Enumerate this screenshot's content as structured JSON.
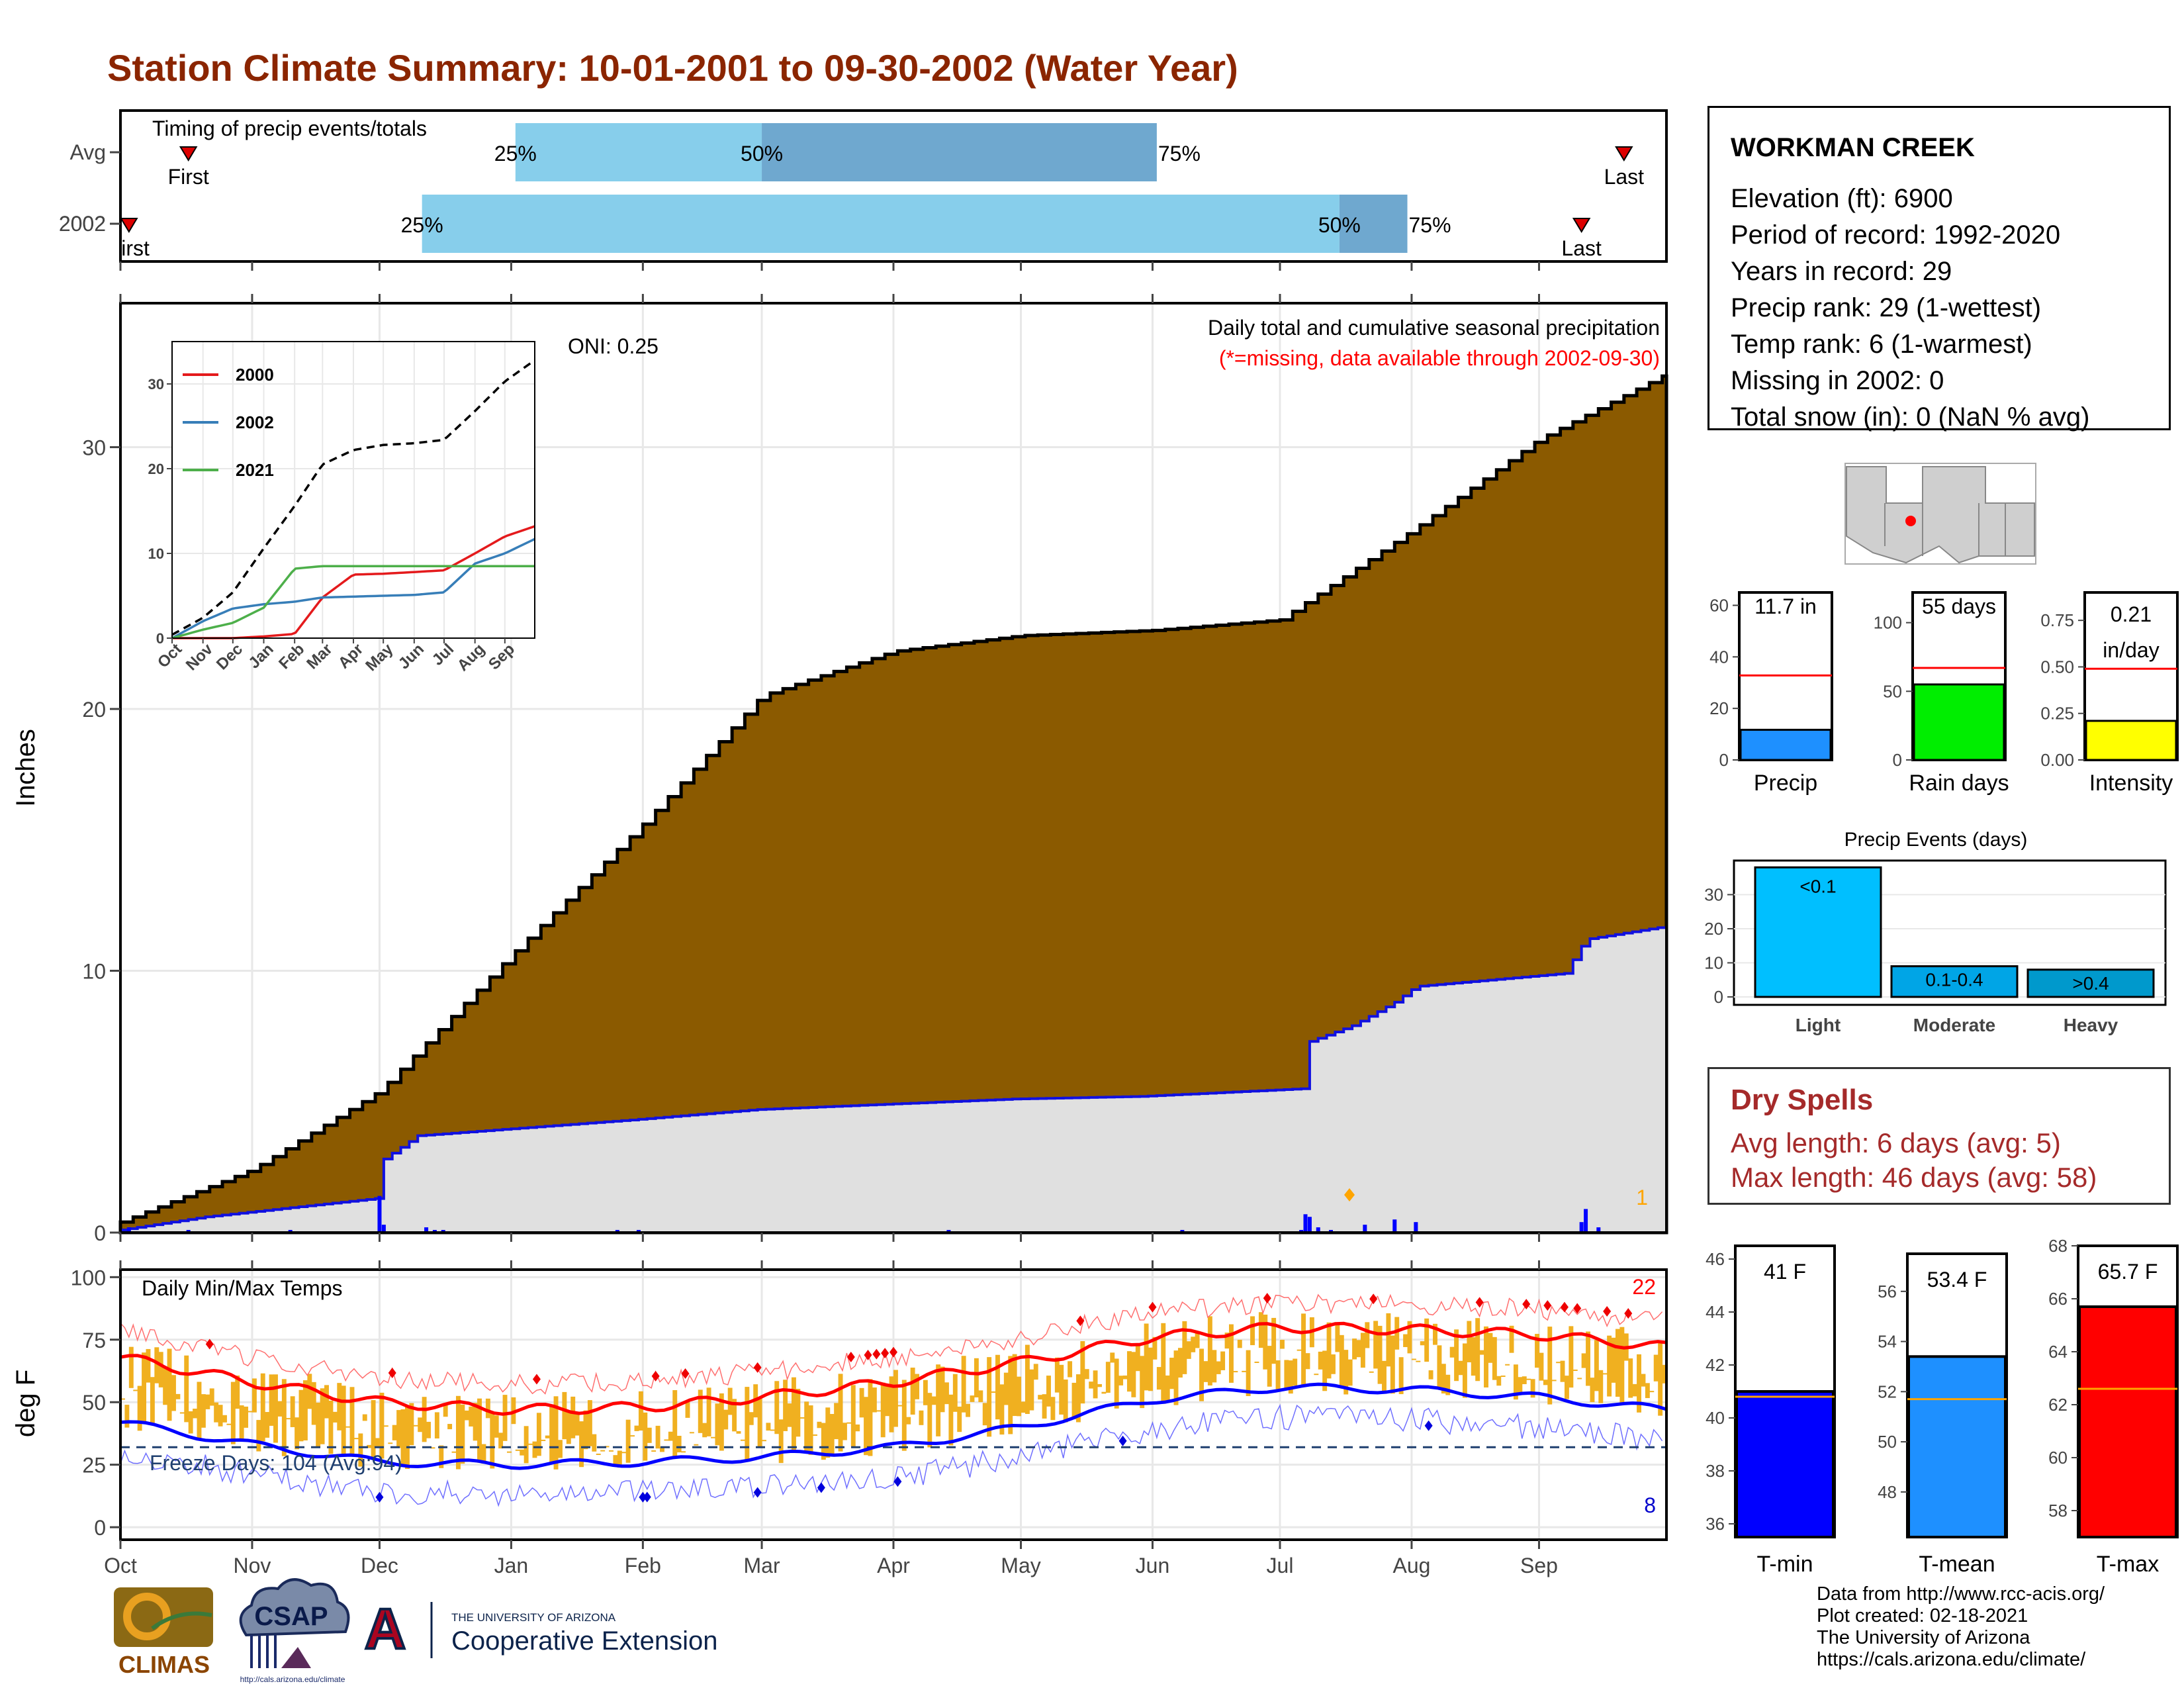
{
  "title": "Station Climate Summary: 10-01-2001 to 09-30-2002 (Water Year)",
  "timing": {
    "panel_label": "Timing of precip events/totals",
    "rows": [
      {
        "label": "Avg",
        "first": "First",
        "last": "Last",
        "p25": "25%",
        "p50": "50%",
        "p75": "75%"
      },
      {
        "label": "2002",
        "first": "First",
        "last": "Last",
        "p25": "25%",
        "p50": "50%",
        "p75": "75%"
      }
    ]
  },
  "precip": {
    "ylabel": "Inches",
    "title_line1": "Daily total and cumulative seasonal precipitation",
    "title_line2": "(*=missing, data available through 2002-09-30)",
    "oni": "ONI: 0.25",
    "count_label": "1",
    "months": [
      "Oct",
      "Nov",
      "Dec",
      "Jan",
      "Feb",
      "Mar",
      "Apr",
      "May",
      "Jun",
      "Jul",
      "Aug",
      "Sep"
    ]
  },
  "inset": {
    "legend": [
      "2000",
      "2002",
      "2021"
    ],
    "colors": [
      "#e41a1c",
      "#377eb8",
      "#4daf4a"
    ],
    "months": [
      "Oct",
      "Nov",
      "Dec",
      "Jan",
      "Feb",
      "Mar",
      "Apr",
      "May",
      "Jun",
      "Jul",
      "Aug",
      "Sep"
    ]
  },
  "temps": {
    "panel_label": "Daily Min/Max Temps",
    "ylabel": "deg F",
    "freeze": "Freeze Days: 104 (Avg:94)",
    "hot_count": "22",
    "cold_count": "8",
    "months": [
      "Oct",
      "Nov",
      "Dec",
      "Jan",
      "Feb",
      "Mar",
      "Apr",
      "May",
      "Jun",
      "Jul",
      "Aug",
      "Sep"
    ]
  },
  "station": {
    "name": "WORKMAN CREEK",
    "lines": [
      "Elevation (ft): 6900",
      "Period of record: 1992-2020",
      "Years in record: 29",
      "Precip rank: 29 (1-wettest)",
      "Temp rank: 6 (1-warmest)",
      "Missing in 2002: 0",
      "Total snow (in): 0 (NaN % avg)"
    ]
  },
  "summary_bars": [
    {
      "label": "Precip",
      "value_text": "11.7 in",
      "value": 11.7,
      "avg": 32.8,
      "ylim": [
        0,
        65
      ],
      "ticks": [
        "0",
        "20",
        "40",
        "60"
      ],
      "color": "#1e90ff"
    },
    {
      "label": "Rain days",
      "value_text": "55 days",
      "value": 55,
      "avg": 67,
      "ylim": [
        0,
        122
      ],
      "ticks": [
        "0",
        "50",
        "100"
      ],
      "color": "#00ee00"
    },
    {
      "label": "Intensity",
      "value_text": "0.21 in/day",
      "value_line1": "0.21",
      "value_line2": "in/day",
      "value": 0.21,
      "avg": 0.49,
      "ylim": [
        0,
        0.9
      ],
      "ticks": [
        "0.00",
        "0.25",
        "0.50",
        "0.75"
      ],
      "color": "#ffff00"
    }
  ],
  "events": {
    "title": "Precip Events (days)",
    "categories": [
      "Light",
      "Moderate",
      "Heavy"
    ],
    "values": [
      38,
      9,
      8
    ],
    "value_labels": [
      "<0.1",
      "0.1-0.4",
      ">0.4"
    ],
    "colors": [
      "#00bfff",
      "#00a5e6",
      "#0099cc"
    ],
    "ticks": [
      "0",
      "10",
      "20",
      "30"
    ]
  },
  "dry_spells": {
    "title": "Dry Spells",
    "avg_line": "Avg length: 6 days (avg: 5)",
    "max_line": "Max length: 46 days (avg: 58)"
  },
  "temp_bars": [
    {
      "label": "T-min",
      "value_text": "41 F",
      "value": 41,
      "avg": 40.8,
      "ylim": [
        35.5,
        46.5
      ],
      "ticks": [
        "36",
        "38",
        "40",
        "42",
        "44",
        "46"
      ],
      "color": "#0000ff"
    },
    {
      "label": "T-mean",
      "value_text": "53.4 F",
      "value": 53.4,
      "avg": 51.7,
      "ylim": [
        46.2,
        57.5
      ],
      "ticks": [
        "48",
        "50",
        "52",
        "54",
        "56"
      ],
      "color": "#1e90ff"
    },
    {
      "label": "T-max",
      "value_text": "65.7 F",
      "value": 65.7,
      "avg": 62.6,
      "ylim": [
        57,
        68
      ],
      "ticks": [
        "58",
        "60",
        "62",
        "64",
        "66",
        "68"
      ],
      "color": "#ff0000"
    }
  ],
  "logos": {
    "climas": "CLIMAS",
    "csap": "CSAP",
    "csap_url": "http://cals.arizona.edu/climate",
    "ua_line1": "THE UNIVERSITY OF ARIZONA",
    "ua_line2": "Cooperative Extension",
    "ua_letter": "A"
  },
  "footer": [
    "Data from http://www.rcc-acis.org/",
    "Plot created: 02-18-2021",
    "The University of Arizona",
    "https://cals.arizona.edu/climate/"
  ],
  "chart_data": [
    {
      "type": "bar",
      "title": "Timing of precip events/totals",
      "series": [
        {
          "name": "Avg",
          "p25_date": "2002-01-02",
          "p50_date": "2002-03-01",
          "p75_date": "2002-06-02",
          "first_date": "2001-10-17",
          "last_date": "2002-09-20"
        },
        {
          "name": "2002",
          "p25_date": "2001-12-11",
          "p50_date": "2002-07-15",
          "p75_date": "2002-07-31",
          "first_date": "2001-10-03",
          "last_date": "2002-09-10"
        }
      ]
    },
    {
      "type": "area",
      "title": "Daily total and cumulative seasonal precipitation",
      "ylabel": "Inches",
      "ylim": [
        0,
        35.5
      ],
      "x_unit": "day of water year",
      "avg_cumulative": {
        "x": [
          0,
          31,
          61,
          92,
          123,
          151,
          182,
          212,
          243,
          273,
          304,
          334,
          364
        ],
        "y": [
          0.4,
          2.4,
          5.4,
          10.6,
          15.6,
          20.5,
          22.2,
          22.8,
          23.0,
          23.4,
          26.8,
          30.3,
          32.8
        ]
      },
      "cumulative_2002": {
        "x": [
          0,
          20,
          60,
          61,
          70,
          120,
          150,
          180,
          210,
          240,
          279,
          280,
          290,
          300,
          305,
          340,
          345,
          364
        ],
        "y": [
          0.1,
          0.6,
          1.3,
          2.7,
          3.7,
          4.3,
          4.7,
          4.9,
          5.1,
          5.2,
          5.5,
          7.3,
          7.9,
          8.8,
          9.4,
          9.9,
          11.2,
          11.7
        ]
      },
      "daily_precip_days": [
        2,
        16,
        40,
        61,
        62,
        72,
        74,
        76,
        117,
        122,
        195,
        250,
        278,
        279,
        280,
        282,
        285,
        293,
        300,
        305,
        344,
        345,
        348
      ]
    },
    {
      "type": "line",
      "title": "Daily Min/Max Temps",
      "ylabel": "deg F",
      "ylim": [
        -5,
        103
      ],
      "freeze_line": 32,
      "avg_tmax": {
        "x": [
          0,
          31,
          61,
          92,
          123,
          151,
          182,
          212,
          243,
          273,
          304,
          334,
          364
        ],
        "y": [
          68,
          58,
          50,
          47,
          48,
          52,
          58,
          66,
          76,
          80,
          79,
          77,
          72
        ]
      },
      "avg_tmin": {
        "x": [
          0,
          31,
          61,
          92,
          123,
          151,
          182,
          212,
          243,
          273,
          304,
          334,
          364
        ],
        "y": [
          42,
          33,
          26,
          25,
          26,
          28,
          32,
          40,
          51,
          56,
          55,
          52,
          47
        ]
      }
    },
    {
      "type": "line",
      "title": "",
      "legend": [
        "2000",
        "2002",
        "2021"
      ],
      "x": [
        0,
        31,
        61,
        92,
        123,
        151,
        182,
        212,
        243,
        273,
        304,
        334,
        364
      ],
      "ylim": [
        0,
        35
      ],
      "series": [
        {
          "name": "2000",
          "values": [
            0,
            0,
            0,
            0.2,
            0.5,
            4.8,
            7.5,
            7.6,
            7.8,
            8.0,
            10.0,
            12.0,
            13.2
          ]
        },
        {
          "name": "2002",
          "values": [
            0,
            2.0,
            3.5,
            4.0,
            4.3,
            4.8,
            4.9,
            5.0,
            5.1,
            5.4,
            8.8,
            10.0,
            11.7
          ]
        },
        {
          "name": "2021",
          "values": [
            0,
            1.0,
            1.8,
            3.6,
            8.2,
            8.5,
            8.5,
            8.5,
            8.5,
            8.5,
            8.5,
            8.5,
            8.5
          ]
        },
        {
          "name": "",
          "values": [
            0.4,
            2.4,
            5.4,
            10.6,
            15.6,
            20.5,
            22.2,
            22.8,
            23.0,
            23.4,
            26.8,
            30.3,
            32.8
          ]
        }
      ]
    },
    {
      "type": "bar",
      "title": "Precip Events (days)",
      "categories": [
        "Light",
        "Moderate",
        "Heavy"
      ],
      "values": [
        38,
        9,
        8
      ]
    }
  ]
}
